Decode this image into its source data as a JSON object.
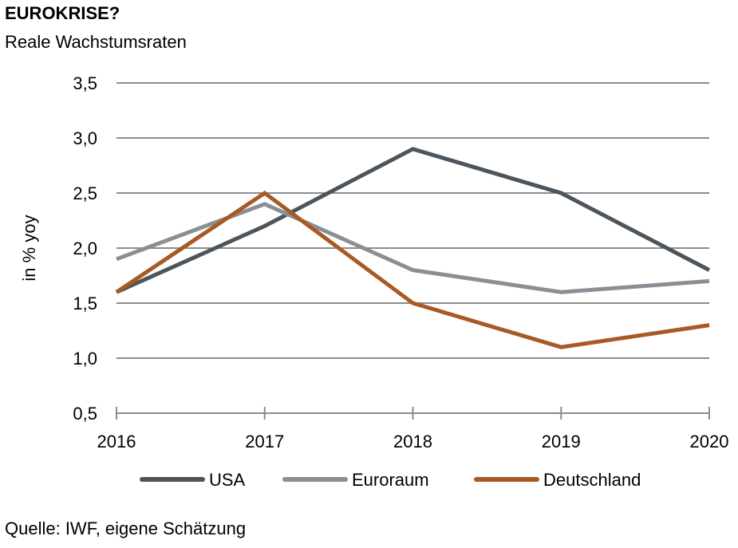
{
  "header": {
    "title": "EUROKRISE?",
    "subtitle": "Reale Wachstumsraten"
  },
  "footer": {
    "source": "Quelle:  IWF, eigene Schätzung"
  },
  "chart_data": {
    "type": "line",
    "title": "EUROKRISE?",
    "subtitle": "Reale Wachstumsraten",
    "xlabel": "",
    "ylabel": "in % yoy",
    "x": [
      "2016",
      "2017",
      "2018",
      "2019",
      "2020"
    ],
    "ylim": [
      0.5,
      3.5
    ],
    "yticks": [
      "0,5",
      "1,0",
      "1,5",
      "2,0",
      "2,5",
      "3,0",
      "3,5"
    ],
    "grid": true,
    "legend": "bottom",
    "series": [
      {
        "name": "USA",
        "color": "#4d555c",
        "values": [
          1.6,
          2.2,
          2.9,
          2.5,
          1.8
        ]
      },
      {
        "name": "Euroraum",
        "color": "#8a8f96",
        "values": [
          1.9,
          2.4,
          1.8,
          1.6,
          1.7
        ]
      },
      {
        "name": "Deutschland",
        "color": "#a85a25",
        "values": [
          1.6,
          2.5,
          1.5,
          1.1,
          1.3
        ]
      }
    ]
  }
}
